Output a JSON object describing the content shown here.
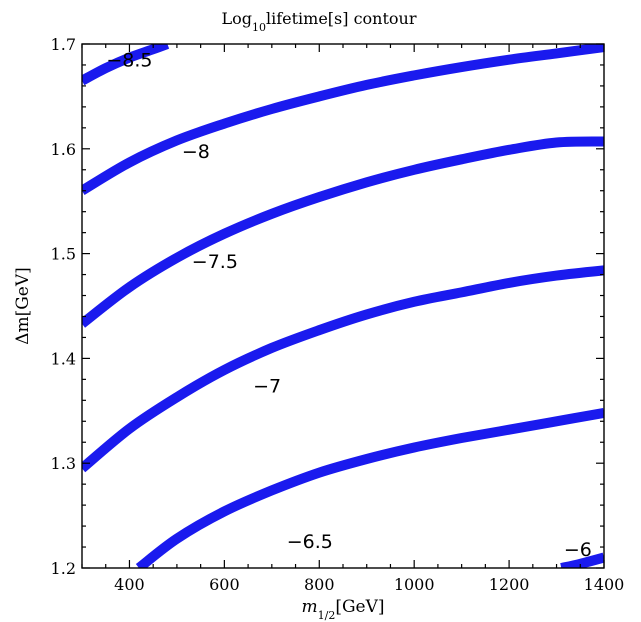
{
  "chart_data": {
    "type": "line",
    "title_parts": {
      "main": "Log",
      "sub": "10",
      "rest": "lifetime[s] contour"
    },
    "xlabel_parts": {
      "main": "m",
      "sub": "1/2",
      "rest": "[GeV]"
    },
    "ylabel": "Δm[GeV]",
    "xlim": [
      300,
      1400
    ],
    "ylim": [
      1.2,
      1.7
    ],
    "x_ticks": [
      400,
      600,
      800,
      1000,
      1200,
      1400
    ],
    "y_ticks": [
      1.2,
      1.3,
      1.4,
      1.5,
      1.6,
      1.7
    ],
    "line_color": "#1a1aee",
    "grid": false,
    "series": [
      {
        "label": "−8.5",
        "label_at": [
          400,
          1.685
        ],
        "x": [
          300,
          350,
          400,
          450,
          480
        ],
        "y": [
          1.665,
          1.677,
          1.687,
          1.695,
          1.7
        ]
      },
      {
        "label": "−8",
        "label_at": [
          540,
          1.598
        ],
        "x": [
          300,
          400,
          500,
          600,
          700,
          800,
          900,
          1000,
          1100,
          1200,
          1300,
          1400
        ],
        "y": [
          1.56,
          1.587,
          1.608,
          1.624,
          1.638,
          1.65,
          1.661,
          1.67,
          1.678,
          1.685,
          1.691,
          1.697
        ]
      },
      {
        "label": "−7.5",
        "label_at": [
          580,
          1.493
        ],
        "x": [
          300,
          400,
          500,
          600,
          700,
          800,
          900,
          1000,
          1100,
          1200,
          1300,
          1400
        ],
        "y": [
          1.433,
          1.468,
          1.496,
          1.519,
          1.538,
          1.554,
          1.568,
          1.58,
          1.59,
          1.599,
          1.606,
          1.607
        ]
      },
      {
        "label": "−7",
        "label_at": [
          690,
          1.374
        ],
        "x": [
          300,
          400,
          500,
          600,
          700,
          800,
          900,
          1000,
          1100,
          1200,
          1300,
          1400
        ],
        "y": [
          1.295,
          1.333,
          1.363,
          1.389,
          1.41,
          1.427,
          1.442,
          1.454,
          1.463,
          1.472,
          1.479,
          1.484
        ]
      },
      {
        "label": "−6.5",
        "label_at": [
          780,
          1.226
        ],
        "x": [
          420,
          500,
          600,
          700,
          800,
          900,
          1000,
          1100,
          1200,
          1300,
          1400
        ],
        "y": [
          1.2,
          1.228,
          1.254,
          1.274,
          1.291,
          1.304,
          1.315,
          1.324,
          1.332,
          1.34,
          1.348
        ]
      },
      {
        "label": "−6",
        "label_at": [
          1345,
          1.218
        ],
        "x": [
          1310,
          1350,
          1400
        ],
        "y": [
          1.2,
          1.204,
          1.21
        ]
      }
    ]
  }
}
